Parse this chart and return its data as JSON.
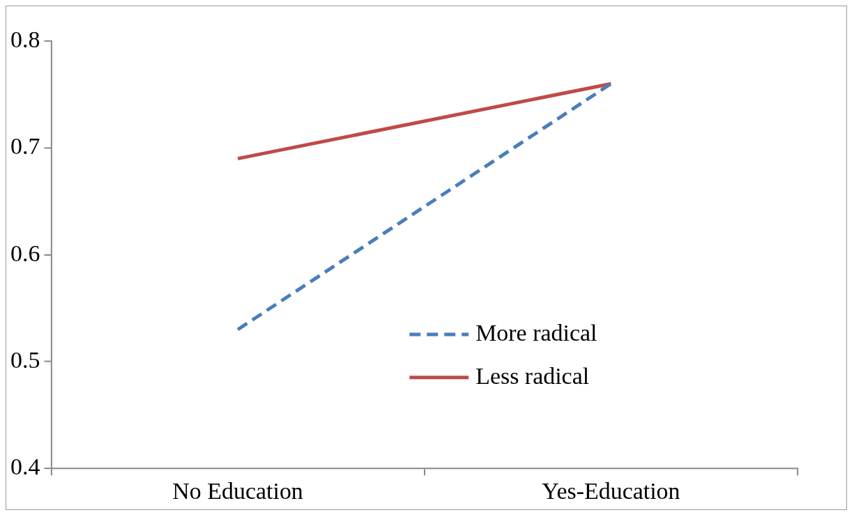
{
  "chart_data": {
    "type": "line",
    "categories": [
      "No Education",
      "Yes-Education"
    ],
    "series": [
      {
        "name": "More radical",
        "color": "#4a7ebb",
        "values": [
          0.53,
          0.76
        ],
        "line_style": "dashed"
      },
      {
        "name": "Less radical",
        "color": "#be4b48",
        "values": [
          0.69,
          0.76
        ],
        "line_style": "solid"
      }
    ],
    "ylim": [
      0.4,
      0.8
    ],
    "yticks": [
      0.4,
      0.5,
      0.6,
      0.7,
      0.8
    ],
    "grid": false,
    "legend": "bottom right",
    "marker": "none"
  }
}
